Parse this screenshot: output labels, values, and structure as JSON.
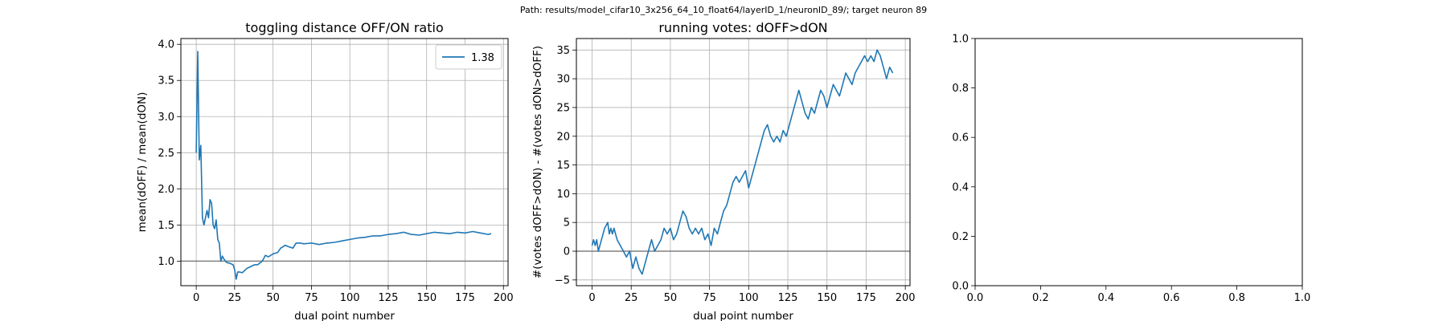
{
  "figure": {
    "suptitle": "Path: results/model_cifar10_3x256_64_10_float64/layerID_1/neuronID_89/; target neuron 89"
  },
  "chart_data": [
    {
      "type": "line",
      "title": "toggling distance OFF/ON ratio",
      "xlabel": "dual point number",
      "ylabel": "mean(dOFF) / mean(dON)",
      "xlim": [
        -10,
        203
      ],
      "ylim": [
        0.66,
        4.08
      ],
      "xticks": [
        0,
        25,
        50,
        75,
        100,
        125,
        150,
        175,
        200
      ],
      "yticks": [
        1.0,
        1.5,
        2.0,
        2.5,
        3.0,
        3.5,
        4.0
      ],
      "ytick_labels": [
        "1.0",
        "1.5",
        "2.0",
        "2.5",
        "3.0",
        "3.5",
        "4.0"
      ],
      "grid": true,
      "legend": "top-right",
      "hline": 1.0,
      "series": [
        {
          "name": "1.38",
          "color": "#1f77b4",
          "x": [
            0,
            1,
            2,
            3,
            4,
            5,
            6,
            7,
            8,
            9,
            10,
            11,
            12,
            13,
            14,
            15,
            16,
            17,
            18,
            19,
            20,
            22,
            24,
            25,
            26,
            27,
            28,
            30,
            33,
            35,
            38,
            40,
            43,
            45,
            47,
            50,
            53,
            55,
            58,
            60,
            63,
            65,
            68,
            70,
            75,
            80,
            85,
            90,
            95,
            100,
            105,
            110,
            115,
            120,
            125,
            130,
            135,
            140,
            145,
            150,
            155,
            160,
            165,
            170,
            175,
            180,
            185,
            190,
            192
          ],
          "y": [
            2.5,
            3.9,
            2.4,
            2.6,
            1.6,
            1.5,
            1.6,
            1.7,
            1.6,
            1.85,
            1.8,
            1.5,
            1.45,
            1.57,
            1.3,
            1.25,
            1.0,
            1.07,
            1.03,
            1.0,
            0.98,
            0.97,
            0.95,
            0.88,
            0.75,
            0.85,
            0.85,
            0.84,
            0.9,
            0.92,
            0.95,
            0.95,
            1.0,
            1.08,
            1.06,
            1.1,
            1.12,
            1.18,
            1.22,
            1.2,
            1.18,
            1.25,
            1.25,
            1.24,
            1.25,
            1.23,
            1.25,
            1.26,
            1.28,
            1.3,
            1.32,
            1.33,
            1.35,
            1.35,
            1.37,
            1.38,
            1.4,
            1.37,
            1.36,
            1.38,
            1.4,
            1.39,
            1.38,
            1.4,
            1.39,
            1.41,
            1.39,
            1.37,
            1.38
          ]
        }
      ]
    },
    {
      "type": "line",
      "title": "running votes: dOFF>dON",
      "xlabel": "dual point number",
      "ylabel": "#(votes dOFF>dON) - #(votes dON>dOFF)",
      "xlim": [
        -10,
        203
      ],
      "ylim": [
        -6,
        37
      ],
      "xticks": [
        0,
        25,
        50,
        75,
        100,
        125,
        150,
        175,
        200
      ],
      "yticks": [
        -5,
        0,
        5,
        10,
        15,
        20,
        25,
        30,
        35
      ],
      "ytick_labels": [
        "−5",
        "0",
        "5",
        "10",
        "15",
        "20",
        "25",
        "30",
        "35"
      ],
      "grid": true,
      "hline": 0,
      "series": [
        {
          "color": "#1f77b4",
          "x": [
            0,
            1,
            2,
            3,
            4,
            6,
            8,
            10,
            11,
            12,
            13,
            14,
            15,
            16,
            18,
            20,
            22,
            24,
            26,
            28,
            30,
            32,
            34,
            36,
            38,
            40,
            42,
            44,
            46,
            48,
            50,
            52,
            54,
            56,
            58,
            60,
            62,
            64,
            66,
            68,
            70,
            72,
            74,
            76,
            78,
            80,
            82,
            84,
            86,
            88,
            90,
            92,
            94,
            96,
            98,
            100,
            102,
            104,
            106,
            108,
            110,
            112,
            114,
            116,
            118,
            120,
            122,
            124,
            126,
            128,
            130,
            132,
            134,
            136,
            138,
            140,
            142,
            144,
            146,
            148,
            150,
            152,
            154,
            156,
            158,
            160,
            162,
            164,
            166,
            168,
            170,
            172,
            174,
            176,
            178,
            180,
            182,
            184,
            186,
            188,
            190,
            192
          ],
          "y": [
            1,
            2,
            1,
            2,
            0,
            2,
            4,
            5,
            3,
            4,
            3,
            4,
            3,
            2,
            1,
            0,
            -1,
            0,
            -3,
            -1,
            -3,
            -4,
            -2,
            0,
            2,
            0,
            1,
            2,
            4,
            3,
            4,
            2,
            3,
            5,
            7,
            6,
            4,
            3,
            4,
            3,
            4,
            2,
            3,
            1,
            4,
            3,
            5,
            7,
            8,
            10,
            12,
            13,
            12,
            13,
            14,
            11,
            13,
            15,
            17,
            19,
            21,
            22,
            20,
            19,
            20,
            19,
            21,
            20,
            22,
            24,
            26,
            28,
            26,
            24,
            23,
            25,
            24,
            26,
            28,
            27,
            25,
            27,
            29,
            28,
            27,
            29,
            31,
            30,
            29,
            31,
            32,
            33,
            34,
            33,
            34,
            33,
            35,
            34,
            32,
            30,
            32,
            31
          ]
        }
      ]
    },
    {
      "type": "line",
      "title": "",
      "xlabel": "",
      "ylabel": "",
      "xlim": [
        0,
        1
      ],
      "ylim": [
        0,
        1
      ],
      "xticks": [
        0,
        0.2,
        0.4,
        0.6,
        0.8,
        1.0
      ],
      "yticks": [
        0,
        0.2,
        0.4,
        0.6,
        0.8,
        1.0
      ],
      "ytick_labels": [
        "0.0",
        "0.2",
        "0.4",
        "0.6",
        "0.8",
        "1.0"
      ],
      "xtick_labels": [
        "0.0",
        "0.2",
        "0.4",
        "0.6",
        "0.8",
        "1.0"
      ],
      "grid": false,
      "series": []
    }
  ]
}
